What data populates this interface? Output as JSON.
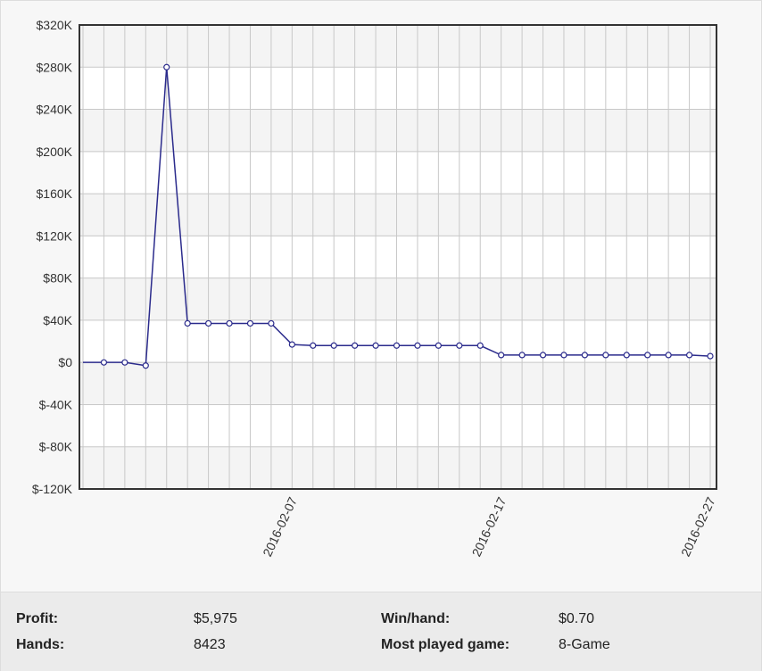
{
  "chart_data": {
    "type": "line",
    "x": [
      "2016-01-28",
      "2016-01-29",
      "2016-01-30",
      "2016-01-31",
      "2016-02-01",
      "2016-02-02",
      "2016-02-03",
      "2016-02-04",
      "2016-02-05",
      "2016-02-06",
      "2016-02-07",
      "2016-02-08",
      "2016-02-09",
      "2016-02-10",
      "2016-02-11",
      "2016-02-12",
      "2016-02-13",
      "2016-02-14",
      "2016-02-15",
      "2016-02-16",
      "2016-02-17",
      "2016-02-18",
      "2016-02-19",
      "2016-02-20",
      "2016-02-21",
      "2016-02-22",
      "2016-02-23",
      "2016-02-24",
      "2016-02-25",
      "2016-02-26",
      "2016-02-27"
    ],
    "series": [
      {
        "color": "#2b2b8c",
        "values": [
          0,
          0,
          0,
          -3000,
          280000,
          37000,
          37000,
          37000,
          37000,
          37000,
          17000,
          16000,
          16000,
          16000,
          16000,
          16000,
          16000,
          16000,
          16000,
          16000,
          7000,
          7000,
          7000,
          7000,
          7000,
          7000,
          7000,
          7000,
          7000,
          7000,
          6000
        ]
      }
    ],
    "xlim": [
      "2016-01-28",
      "2016-02-27"
    ],
    "xticks": [
      "2016-02-07",
      "2016-02-17",
      "2016-02-27"
    ],
    "ylim": [
      -120000,
      320000
    ],
    "yticks": [
      {
        "value": -120000,
        "label": "$-120K"
      },
      {
        "value": -80000,
        "label": "$-80K"
      },
      {
        "value": -40000,
        "label": "$-40K"
      },
      {
        "value": 0,
        "label": "$0"
      },
      {
        "value": 40000,
        "label": "$40K"
      },
      {
        "value": 80000,
        "label": "$80K"
      },
      {
        "value": 120000,
        "label": "$120K"
      },
      {
        "value": 160000,
        "label": "$160K"
      },
      {
        "value": 200000,
        "label": "$200K"
      },
      {
        "value": 240000,
        "label": "$240K"
      },
      {
        "value": 280000,
        "label": "$280K"
      },
      {
        "value": 320000,
        "label": "$320K"
      }
    ],
    "grid": true
  },
  "stats": [
    {
      "label": "Profit:",
      "value": "$5,975"
    },
    {
      "label": "Win/hand:",
      "value": "$0.70"
    },
    {
      "label": "Hands:",
      "value": "8423"
    },
    {
      "label": "Most played game:",
      "value": "8-Game"
    }
  ]
}
